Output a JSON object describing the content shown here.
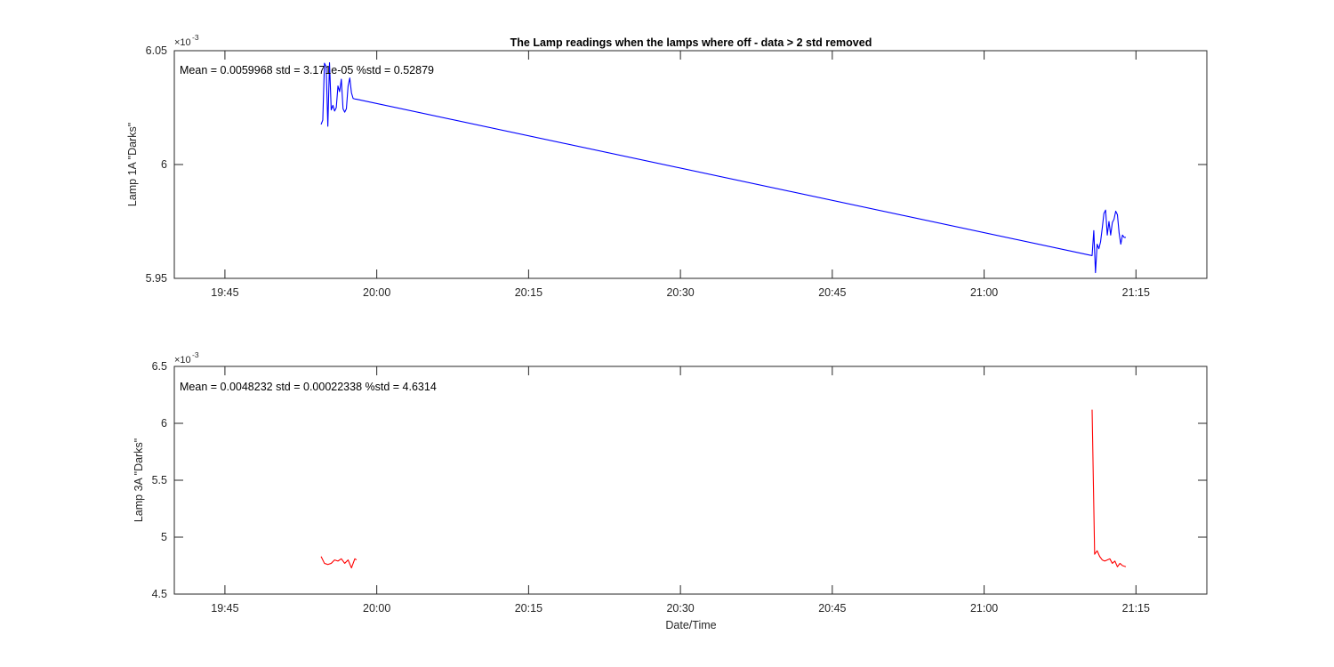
{
  "figure": {
    "title": "The Lamp readings when the lamps where off - data > 2 std removed",
    "xlabel": "Date/Time"
  },
  "chart_data": [
    {
      "type": "line",
      "ylabel": "Lamp 1A \"Darks\"",
      "annotation": "Mean = 0.0059968  std = 3.171e-05  %std = 0.52879",
      "exponent_base": "×10",
      "exponent_power": "-3",
      "xlim": [
        "19:40",
        "21:22"
      ],
      "ylim": [
        5.95,
        6.05
      ],
      "x_ticks": [
        "19:45",
        "20:00",
        "20:15",
        "20:30",
        "20:45",
        "21:00",
        "21:15"
      ],
      "y_ticks": [
        "5.95",
        "6",
        "6.05"
      ],
      "grid": false,
      "series": [
        {
          "color": "#0000ff",
          "x": [
            "19:54:30",
            "19:54:40",
            "19:54:50",
            "19:55:00",
            "19:55:10",
            "19:55:20",
            "19:55:30",
            "19:55:40",
            "19:55:50",
            "19:56:00",
            "19:56:10",
            "19:56:20",
            "19:56:30",
            "19:56:40",
            "19:56:50",
            "19:57:00",
            "19:57:10",
            "19:57:20",
            "19:57:30",
            "19:57:40",
            "19:57:50",
            "19:58:00",
            "21:10:40",
            "21:10:50",
            "21:11:00",
            "21:11:10",
            "21:11:20",
            "21:11:30",
            "21:11:40",
            "21:11:50",
            "21:12:00",
            "21:12:10",
            "21:12:20",
            "21:12:30",
            "21:12:40",
            "21:12:50",
            "21:13:00",
            "21:13:10",
            "21:13:20",
            "21:13:30",
            "21:13:40",
            "21:13:50",
            "21:14:00"
          ],
          "y": [
            6.0176,
            6.0195,
            6.0445,
            6.043,
            6.0168,
            6.0447,
            6.024,
            6.026,
            6.0235,
            6.025,
            6.0345,
            6.032,
            6.0375,
            6.0245,
            6.023,
            6.0245,
            6.0345,
            6.038,
            6.0315,
            6.029,
            6.0288,
            6.0287,
            5.96,
            5.971,
            5.9525,
            5.965,
            5.963,
            5.966,
            5.972,
            5.9785,
            5.98,
            5.969,
            5.975,
            5.969,
            5.9745,
            5.976,
            5.9795,
            5.978,
            5.97,
            5.965,
            5.969,
            5.968,
            5.968
          ]
        }
      ]
    },
    {
      "type": "line",
      "ylabel": "Lamp 3A \"Darks\"",
      "annotation": "Mean = 0.0048232  std = 0.00022338  %std = 4.6314",
      "exponent_base": "×10",
      "exponent_power": "-3",
      "xlim": [
        "19:40",
        "21:22"
      ],
      "ylim": [
        4.5,
        6.5
      ],
      "x_ticks": [
        "19:45",
        "20:00",
        "20:15",
        "20:30",
        "20:45",
        "21:00",
        "21:15"
      ],
      "y_ticks": [
        "4.5",
        "5",
        "5.5",
        "6",
        "6.5"
      ],
      "grid": false,
      "series": [
        {
          "color": "#ff0000",
          "segments": [
            {
              "x": [
                "19:54:30",
                "19:54:50",
                "19:55:10",
                "19:55:30",
                "19:55:50",
                "19:56:10",
                "19:56:30",
                "19:56:50",
                "19:57:10",
                "19:57:30",
                "19:57:50",
                "19:58:00"
              ],
              "y": [
                4.83,
                4.77,
                4.76,
                4.77,
                4.8,
                4.79,
                4.81,
                4.77,
                4.8,
                4.73,
                4.81,
                4.8
              ]
            },
            {
              "x": [
                "21:10:40",
                "21:10:55",
                "21:11:10",
                "21:11:25",
                "21:11:40",
                "21:11:55",
                "21:12:10",
                "21:12:25",
                "21:12:40",
                "21:12:55",
                "21:13:10",
                "21:13:25",
                "21:13:40",
                "21:14:00"
              ],
              "y": [
                6.12,
                4.85,
                4.88,
                4.83,
                4.8,
                4.79,
                4.8,
                4.81,
                4.77,
                4.79,
                4.74,
                4.77,
                4.75,
                4.74
              ]
            }
          ]
        }
      ]
    }
  ]
}
